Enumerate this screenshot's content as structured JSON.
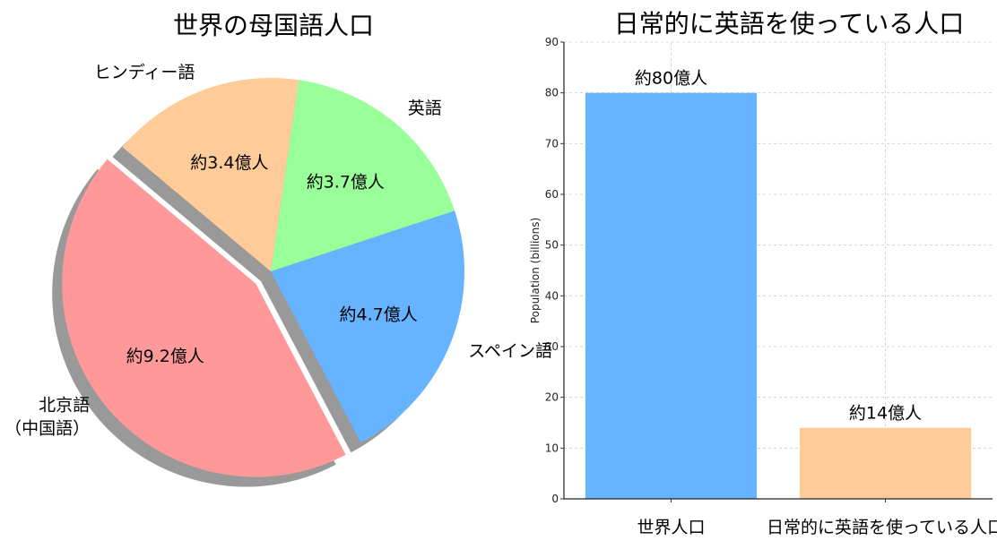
{
  "chart_data": [
    {
      "type": "pie",
      "title": "世界の母国語人口",
      "slices": [
        {
          "label": "北京語\n（中国語）",
          "value": 9.2,
          "value_label": "約9.2億人",
          "color": "#ff9999",
          "exploded": true
        },
        {
          "label": "スペイン語",
          "value": 4.7,
          "value_label": "約4.7億人",
          "color": "#66b3ff",
          "exploded": false
        },
        {
          "label": "英語",
          "value": 3.7,
          "value_label": "約3.7億人",
          "color": "#99ff99",
          "exploded": false
        },
        {
          "label": "ヒンディー語",
          "value": 3.4,
          "value_label": "約3.4億人",
          "color": "#ffcc99",
          "exploded": false
        }
      ],
      "shadow": true
    },
    {
      "type": "bar",
      "title": "日常的に英語を使っている人口",
      "categories": [
        "世界人口",
        "日常的に英語を使っている人口"
      ],
      "values": [
        80,
        14
      ],
      "value_labels": [
        "約80億人",
        "約14億人"
      ],
      "colors": [
        "#66b3ff",
        "#ffcc99"
      ],
      "ylabel": "Population (billions)",
      "xlabel": "",
      "ylim": [
        0,
        90
      ],
      "yticks": [
        0,
        10,
        20,
        30,
        40,
        50,
        60,
        70,
        80,
        90
      ],
      "grid": true
    }
  ]
}
